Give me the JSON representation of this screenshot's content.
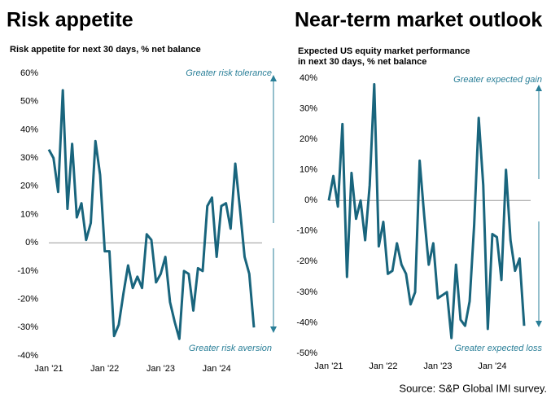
{
  "chart_data": [
    {
      "type": "line",
      "title": "Risk appetite",
      "subtitle": [
        "Risk appetite for next 30 days, % net balance"
      ],
      "annotations": [
        "Greater risk tolerance",
        "Greater risk aversion"
      ],
      "categories": [
        "Jan '21",
        null,
        null,
        null,
        null,
        null,
        null,
        null,
        null,
        null,
        null,
        null,
        "Jan '22",
        null,
        null,
        null,
        null,
        null,
        null,
        null,
        null,
        null,
        null,
        null,
        "Jan '23",
        null,
        null,
        null,
        null,
        null,
        null,
        null,
        null,
        null,
        null,
        null,
        "Jan '24",
        null,
        null,
        null,
        null,
        null,
        null,
        null,
        null
      ],
      "series": [
        {
          "color": "#19657d",
          "values": [
            33,
            30,
            18,
            54,
            12,
            35,
            9,
            14,
            1,
            7,
            36,
            24,
            -3,
            -3,
            -33,
            -29,
            -18,
            -8,
            -16,
            -12,
            -16,
            3,
            1,
            -14,
            -11,
            -5,
            -21,
            -28,
            -34,
            -10,
            -11,
            -24,
            -9,
            -10,
            13,
            16,
            -5,
            13,
            14,
            5,
            28,
            12,
            -5,
            -11,
            -30
          ]
        }
      ],
      "ylim": [
        -40,
        60
      ],
      "yticks": [
        {
          "value": -40,
          "label": "-40%"
        },
        {
          "value": -30,
          "label": "-30%"
        },
        {
          "value": -20,
          "label": "-20%"
        },
        {
          "value": -10,
          "label": "-10%"
        },
        {
          "value": 0,
          "label": "0%"
        },
        {
          "value": 10,
          "label": "10%"
        },
        {
          "value": 20,
          "label": "20%"
        },
        {
          "value": 30,
          "label": "30%"
        },
        {
          "value": 40,
          "label": "40%"
        },
        {
          "value": 50,
          "label": "50%"
        },
        {
          "value": 60,
          "label": "60%"
        }
      ]
    },
    {
      "type": "line",
      "title": "Near-term market outlook",
      "subtitle": [
        "Expected US equity market performance",
        "in next 30 days, % net balance"
      ],
      "annotations": [
        "Greater expected gain",
        "Greater  expected loss"
      ],
      "categories": [
        "Jan '21",
        null,
        null,
        null,
        null,
        null,
        null,
        null,
        null,
        null,
        null,
        null,
        "Jan '22",
        null,
        null,
        null,
        null,
        null,
        null,
        null,
        null,
        null,
        null,
        null,
        "Jan '23",
        null,
        null,
        null,
        null,
        null,
        null,
        null,
        null,
        null,
        null,
        null,
        "Jan '24",
        null,
        null,
        null,
        null,
        null,
        null,
        null
      ],
      "series": [
        {
          "color": "#19657d",
          "values": [
            0,
            8,
            -2,
            25,
            -25,
            9,
            -6,
            0,
            -13,
            5,
            38,
            -15,
            -7,
            -24,
            -23,
            -14,
            -21,
            -24,
            -34,
            -30,
            13,
            -5,
            -21,
            -14,
            -32,
            -31,
            -30,
            -45,
            -21,
            -39,
            -41,
            -33,
            -8,
            27,
            5,
            -42,
            -11,
            -12,
            -26,
            10,
            -13,
            -23,
            -19,
            -41
          ]
        }
      ],
      "ylim": [
        -50,
        40
      ],
      "yticks": [
        {
          "value": -50,
          "label": "-50%"
        },
        {
          "value": -40,
          "label": "-40%"
        },
        {
          "value": -30,
          "label": "-30%"
        },
        {
          "value": -20,
          "label": "-20%"
        },
        {
          "value": -10,
          "label": "-10%"
        },
        {
          "value": 0,
          "label": "0%"
        },
        {
          "value": 10,
          "label": "10%"
        },
        {
          "value": 20,
          "label": "20%"
        },
        {
          "value": 30,
          "label": "30%"
        },
        {
          "value": 40,
          "label": "40%"
        }
      ]
    }
  ],
  "source": "Source: S&P Global IMI survey."
}
